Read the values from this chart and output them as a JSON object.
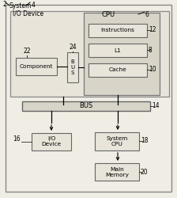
{
  "bg_color": "#f0ede4",
  "outer_border_color": "#888888",
  "box_face_light": "#e8e4da",
  "box_face_medium": "#d8d4c8",
  "box_edge": "#666666",
  "title": "System",
  "title_num": "2",
  "system_num": "4",
  "io_device_outer_label": "I/O Device",
  "component_label": "Component",
  "component_num": "22",
  "bus_small_label": "B\nU\nS",
  "bus_small_num": "24",
  "cpu_label": "CPU",
  "cpu_num": "6",
  "instructions_label": "Instructions",
  "instructions_num": "12",
  "l1_label": "L1",
  "l1_num": "8",
  "cache_label": "Cache",
  "cache_num": "10",
  "bus_main_label": "BUS",
  "bus_main_num": "14",
  "io_device_bottom_label": "I/O\nDevice",
  "io_device_bottom_num": "16",
  "system_cpu_label": "System\nCPU",
  "system_cpu_num": "18",
  "main_memory_label": "Main\nMemory",
  "main_memory_num": "20"
}
